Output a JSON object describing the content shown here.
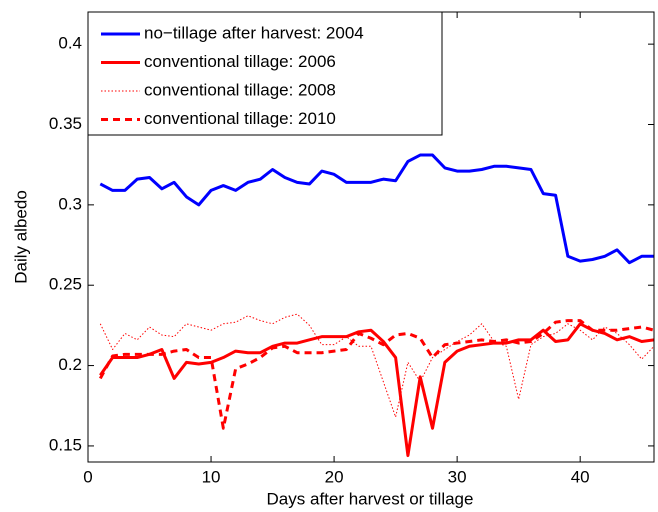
{
  "chart_data": {
    "type": "line",
    "xlabel": "Days after harvest or tillage",
    "ylabel": "Daily albedo",
    "x": [
      1,
      2,
      3,
      4,
      5,
      6,
      7,
      8,
      9,
      10,
      11,
      12,
      13,
      14,
      15,
      16,
      17,
      18,
      19,
      20,
      21,
      22,
      23,
      24,
      25,
      26,
      27,
      28,
      29,
      30,
      31,
      32,
      33,
      34,
      35,
      36,
      37,
      38,
      39,
      40,
      41,
      42,
      43,
      44,
      45,
      46
    ],
    "xlim": [
      0,
      46
    ],
    "xticks": [
      0,
      10,
      20,
      30,
      40
    ],
    "ylim": [
      0.14,
      0.42
    ],
    "yticks": [
      0.15,
      0.2,
      0.25,
      0.3,
      0.35,
      0.4
    ],
    "legend": "upper left",
    "series": [
      {
        "name": "no−tillage after harvest: 2004",
        "color": "#0000ff",
        "style": "solid",
        "values": [
          0.313,
          0.309,
          0.309,
          0.316,
          0.317,
          0.31,
          0.314,
          0.305,
          0.3,
          0.309,
          0.312,
          0.309,
          0.314,
          0.316,
          0.322,
          0.317,
          0.314,
          0.313,
          0.321,
          0.319,
          0.314,
          0.314,
          0.314,
          0.316,
          0.315,
          0.327,
          0.331,
          0.331,
          0.323,
          0.321,
          0.321,
          0.322,
          0.324,
          0.324,
          0.323,
          0.322,
          0.307,
          0.306,
          0.268,
          0.265,
          0.266,
          0.268,
          0.272,
          0.264,
          0.268,
          0.268
        ]
      },
      {
        "name": "conventional tillage: 2006",
        "color": "#ff0000",
        "style": "solid",
        "values": [
          0.194,
          0.205,
          0.205,
          0.205,
          0.207,
          0.21,
          0.192,
          0.202,
          0.201,
          0.202,
          0.205,
          0.209,
          0.208,
          0.208,
          0.212,
          0.214,
          0.214,
          0.216,
          0.218,
          0.218,
          0.218,
          0.221,
          0.222,
          0.215,
          0.205,
          0.144,
          0.193,
          0.161,
          0.202,
          0.209,
          0.212,
          0.213,
          0.214,
          0.214,
          0.216,
          0.216,
          0.222,
          0.215,
          0.216,
          0.226,
          0.222,
          0.22,
          0.216,
          0.218,
          0.215,
          0.216
        ]
      },
      {
        "name": "conventional tillage: 2008",
        "color": "#ff0000",
        "style": "dotted",
        "values": [
          0.226,
          0.21,
          0.22,
          0.216,
          0.224,
          0.219,
          0.218,
          0.226,
          0.224,
          0.222,
          0.226,
          0.227,
          0.231,
          0.228,
          0.226,
          0.23,
          0.232,
          0.225,
          0.213,
          0.213,
          0.218,
          0.212,
          0.212,
          0.19,
          0.168,
          0.202,
          0.19,
          0.205,
          0.21,
          0.215,
          0.219,
          0.226,
          0.215,
          0.212,
          0.179,
          0.213,
          0.218,
          0.22,
          0.226,
          0.222,
          0.216,
          0.224,
          0.22,
          0.213,
          0.204,
          0.212
        ]
      },
      {
        "name": "conventional tillage: 2010",
        "color": "#ff0000",
        "style": "dashed",
        "values": [
          0.192,
          0.206,
          0.207,
          0.207,
          0.207,
          0.207,
          0.209,
          0.21,
          0.205,
          0.205,
          0.161,
          0.198,
          0.201,
          0.205,
          0.211,
          0.212,
          0.208,
          0.208,
          0.208,
          0.209,
          0.21,
          0.22,
          0.217,
          0.213,
          0.219,
          0.22,
          0.217,
          0.205,
          0.213,
          0.214,
          0.215,
          0.216,
          0.215,
          0.216,
          0.214,
          0.215,
          0.22,
          0.227,
          0.228,
          0.228,
          0.222,
          0.222,
          0.222,
          0.223,
          0.224,
          0.222
        ]
      }
    ]
  }
}
